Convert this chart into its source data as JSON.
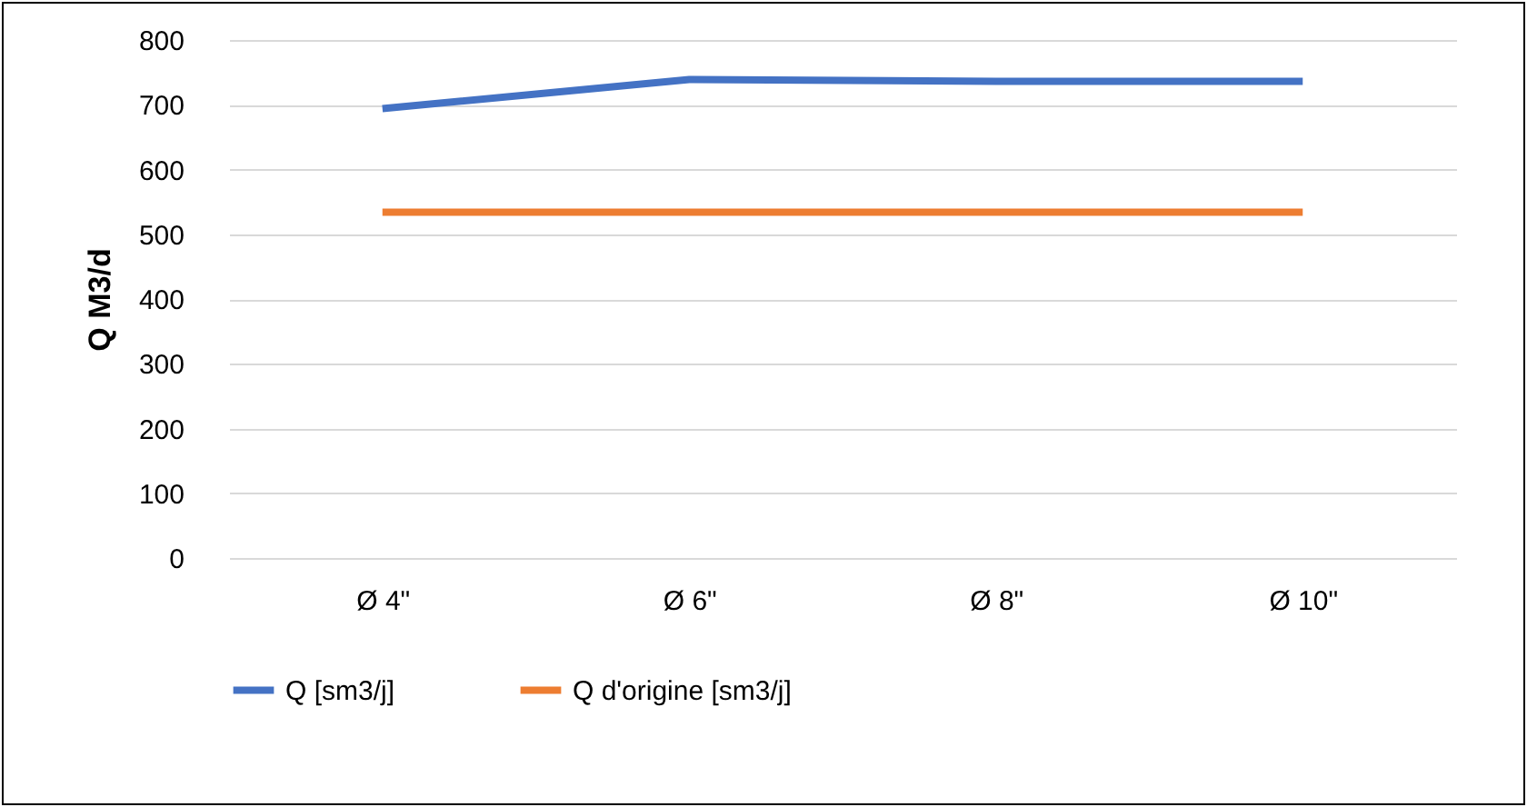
{
  "chart_data": {
    "type": "line",
    "ylabel": "Q M3/d",
    "categories": [
      "Ø 4\"",
      "Ø 6\"",
      "Ø 8\"",
      "Ø 10\""
    ],
    "series": [
      {
        "name": "Q [sm3/j]",
        "color": "#4472c4",
        "values": [
          694,
          739,
          736,
          736
        ]
      },
      {
        "name": "Q d'origine [sm3/j]",
        "color": "#ed7d31",
        "values": [
          534,
          534,
          534,
          534
        ]
      }
    ],
    "ylim": [
      0,
      800
    ],
    "yticks": [
      0,
      100,
      200,
      300,
      400,
      500,
      600,
      700,
      800
    ],
    "grid": "y",
    "legend": "bottom",
    "marker": "none",
    "line_style": "solid"
  }
}
